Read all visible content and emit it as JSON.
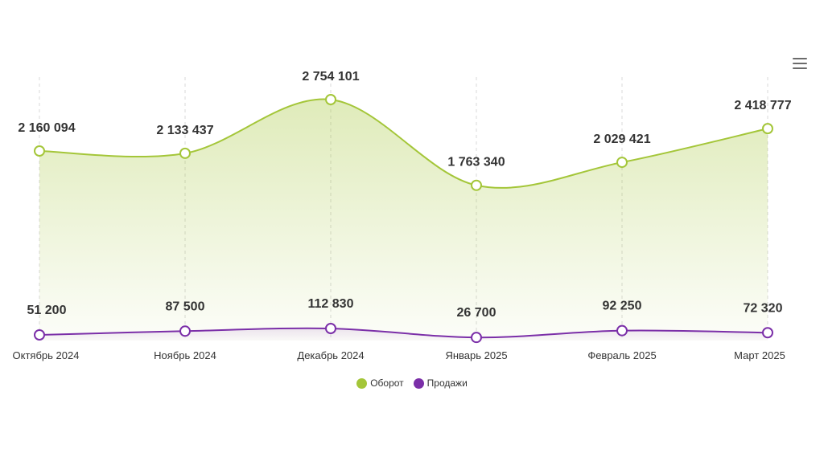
{
  "menu": {
    "icon": "hamburger-menu-icon"
  },
  "chart_data": {
    "type": "area",
    "categories": [
      "Октябрь 2024",
      "Ноябрь 2024",
      "Декабрь 2024",
      "Январь 2025",
      "Февраль 2025",
      "Март 2025"
    ],
    "series": [
      {
        "name": "Оборот",
        "color": "#a4c639",
        "values": [
          2160094,
          2133437,
          2754101,
          1763340,
          2029421,
          2418777
        ],
        "labels": [
          "2 160 094",
          "2 133 437",
          "2 754 101",
          "1 763 340",
          "2 029 421",
          "2 418 777"
        ]
      },
      {
        "name": "Продажи",
        "color": "#7b2fa8",
        "values": [
          51200,
          87500,
          112830,
          26700,
          92250,
          72320
        ],
        "labels": [
          "51 200",
          "87 500",
          "112 830",
          "26 700",
          "92 250",
          "72 320"
        ]
      }
    ],
    "legend_position": "bottom-center",
    "grid": "vertical-dashed"
  }
}
